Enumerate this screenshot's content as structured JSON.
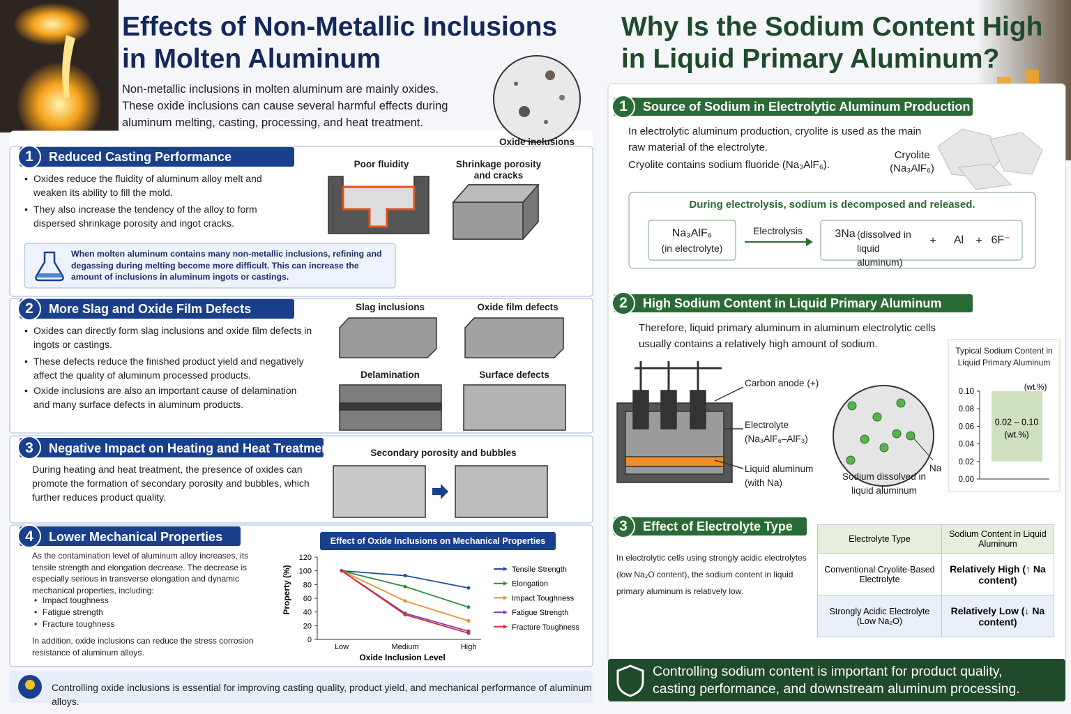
{
  "left": {
    "title_lines": [
      "Effects of Non-Metallic Inclusions",
      "in Molten Aluminum"
    ],
    "intro": "Non-metallic inclusions in molten aluminum are mainly oxides. These oxide inclusions can cause several harmful effects during aluminum melting, casting, processing, and heat treatment.",
    "oxide_label": "Oxide inclusions",
    "sections": [
      {
        "number": "1",
        "heading": "Reduced Casting Performance",
        "bullets": [
          "Oxides reduce the fluidity of aluminum alloy melt and weaken its ability to fill the mold.",
          "They also increase the tendency of the alloy to form dispersed shrinkage porosity and ingot cracks."
        ],
        "image_labels": [
          "Poor fluidity",
          "Shrinkage porosity and cracks"
        ],
        "note": "When molten aluminum contains many non-metallic inclusions, refining and degassing during melting become more difficult. This can increase the amount of inclusions in aluminum ingots or castings."
      },
      {
        "number": "2",
        "heading": "More Slag and Oxide Film Defects",
        "bullets": [
          "Oxides can directly form slag inclusions and oxide film defects in ingots or castings.",
          "These defects reduce the finished product yield and negatively affect the quality of aluminum processed products.",
          "Oxide inclusions are also an important cause of delamination and many surface defects in aluminum products."
        ],
        "image_labels": [
          "Slag inclusions",
          "Oxide film defects",
          "Delamination",
          "Surface defects"
        ]
      },
      {
        "number": "3",
        "heading": "Negative Impact on Heating and Heat Treatment",
        "text": "During heating and heat treatment, the presence of oxides can promote the formation of secondary porosity and bubbles, which further reduces product quality.",
        "image_label": "Secondary porosity and bubbles"
      },
      {
        "number": "4",
        "heading": "Lower Mechanical Properties",
        "text": "As the contamination level of aluminum alloy increases, its tensile strength and elongation decrease. The decrease is especially serious in transverse elongation and dynamic mechanical properties, including:",
        "list": [
          "Impact toughness",
          "Fatigue strength",
          "Fracture toughness"
        ],
        "text2": "In addition, oxide inclusions can reduce the stress corrosion resistance of aluminum alloys."
      }
    ],
    "footer": "Controlling oxide inclusions is essential for improving casting quality, product yield, and mechanical performance of aluminum alloys."
  },
  "right": {
    "title_lines": [
      "Why Is the Sodium Content High",
      "in Liquid Primary Aluminum?"
    ],
    "sections": [
      {
        "number": "1",
        "heading": "Source of Sodium in Electrolytic Aluminum Production",
        "text": [
          "In electrolytic aluminum production, cryolite is used as the main raw material of the electrolyte.",
          "Cryolite contains sodium fluoride (Na₃AlF₆)."
        ],
        "cryolite_label": [
          "Cryolite",
          "(Na₃AlF₆)"
        ],
        "box_title": "During electrolysis, sodium is decomposed and released.",
        "equation": {
          "reactant": "Na₃AlF₆",
          "reactant_note": "(in electrolyte)",
          "arrow_label": "Electrolysis",
          "product1": "3Na",
          "product1_note": "(dissolved in liquid aluminum)",
          "plus1": "+",
          "product2": "Al",
          "plus2": "+",
          "product3": "6F⁻"
        }
      },
      {
        "number": "2",
        "heading": "High Sodium Content in Liquid Primary Aluminum",
        "text": "Therefore, liquid primary aluminum in aluminum electrolytic cells usually contains a relatively high amount of sodium.",
        "cell_labels": [
          "Carbon anode (+)",
          "Electrolyte (Na₃AlF₆–AlF₃)",
          "Liquid aluminum (with Na)"
        ],
        "circle_label": "Sodium dissolved in liquid aluminum",
        "na_label": "Na"
      },
      {
        "number": "3",
        "heading": "Effect of Electrolyte Type",
        "text": "In electrolytic cells using strongly acidic electrolytes (low Na₂O content), the sodium content in liquid primary aluminum is relatively low.",
        "table": {
          "header": [
            "Electrolyte Type",
            "Sodium Content in Liquid Aluminum"
          ],
          "rows": [
            [
              "Conventional Cryolite-Based Electrolyte",
              "Relatively High (↑ Na content)"
            ],
            [
              "Strongly Acidic Electrolyte (Low Na₂O)",
              "Relatively Low (↓ Na content)"
            ]
          ]
        }
      }
    ],
    "footer": "Controlling sodium content is important for product quality, casting performance, and downstream aluminum processing."
  },
  "chart_data": [
    {
      "type": "line",
      "title": "Effect of Oxide Inclusions on Mechanical Properties",
      "x_label": "Oxide Inclusion Level",
      "y_label": "Property (%)",
      "categories": [
        "Low",
        "Medium",
        "High"
      ],
      "series": [
        {
          "name": "Tensile Strength",
          "color": "#1f4e9c",
          "values": [
            100,
            93,
            75
          ]
        },
        {
          "name": "Elongation",
          "color": "#2e8b3e",
          "values": [
            100,
            77,
            47
          ]
        },
        {
          "name": "Impact Toughness",
          "color": "#f28c28",
          "values": [
            100,
            56,
            27
          ]
        },
        {
          "name": "Fatigue Strength",
          "color": "#7b3fb5",
          "values": [
            100,
            38,
            12
          ]
        },
        {
          "name": "Fracture Toughness",
          "color": "#d62d2d",
          "values": [
            100,
            36,
            9
          ]
        }
      ],
      "ylim": [
        0,
        120
      ],
      "yticks": [
        0,
        20,
        40,
        60,
        80,
        100,
        120
      ],
      "legend": "right"
    },
    {
      "type": "range_bar",
      "title": "Typical Sodium Content in Liquid Primary Aluminum",
      "unit_label": "(wt.%)",
      "low": 0.02,
      "high": 0.1,
      "value_label": "0.02 – 0.10",
      "value_unit": "(wt.%)",
      "color": "#cfe0bf",
      "ylim": [
        0,
        0.1
      ],
      "yticks": [
        {
          "value": 0,
          "label": "0.00"
        },
        0.02,
        0.04,
        0.06,
        0.08,
        {
          "value": 0.1,
          "label": "0.10"
        }
      ]
    }
  ]
}
